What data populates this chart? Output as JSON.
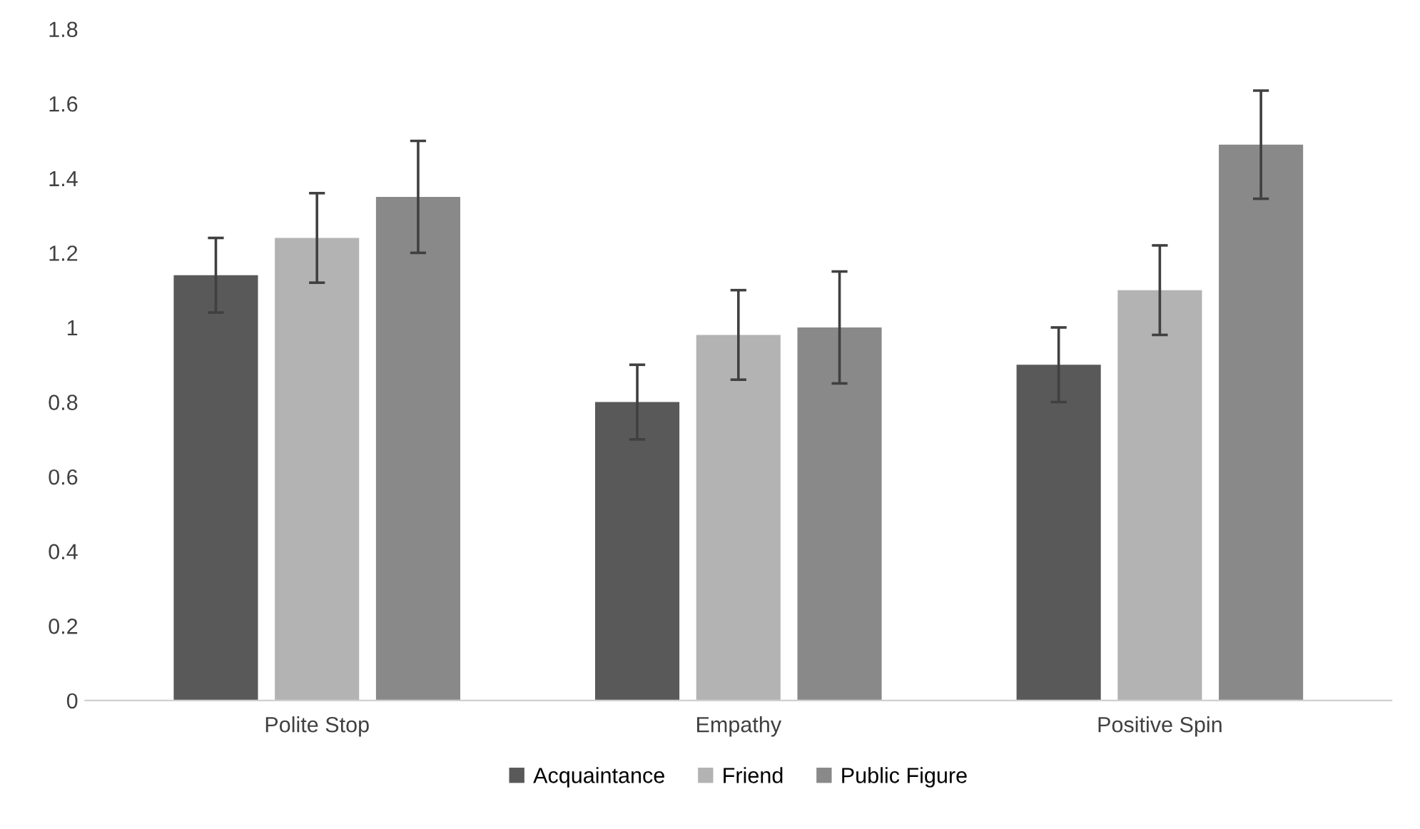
{
  "chart_data": {
    "type": "bar",
    "categories": [
      "Polite Stop",
      "Empathy",
      "Positive Spin"
    ],
    "series": [
      {
        "name": "Acquaintance",
        "color": "#595959",
        "values": [
          1.14,
          0.8,
          0.9
        ],
        "errors": [
          0.1,
          0.1,
          0.1
        ]
      },
      {
        "name": "Friend",
        "color": "#b3b3b3",
        "values": [
          1.24,
          0.98,
          1.1
        ],
        "errors": [
          0.12,
          0.12,
          0.12
        ]
      },
      {
        "name": "Public Figure",
        "color": "#898989",
        "values": [
          1.35,
          1.0,
          1.49
        ],
        "errors": [
          0.15,
          0.15,
          0.145
        ]
      }
    ],
    "ylim": [
      0,
      1.8
    ],
    "yticks": [
      0,
      0.2,
      0.4,
      0.6,
      0.8,
      1,
      1.2,
      1.4,
      1.6,
      1.8
    ],
    "grid": false,
    "legend": "bottom"
  }
}
